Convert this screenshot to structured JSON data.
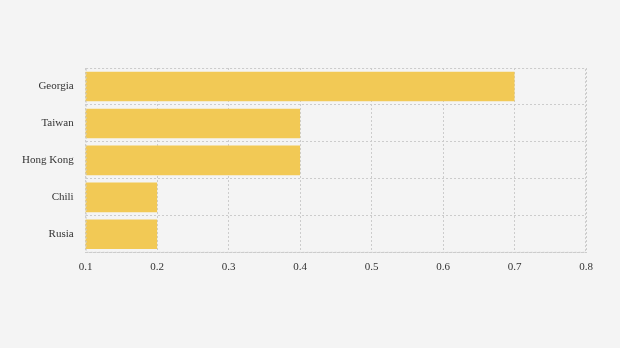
{
  "chart_data": {
    "type": "bar",
    "orientation": "horizontal",
    "categories": [
      "Georgia",
      "Taiwan",
      "Hong Kong",
      "Chili",
      "Rusia"
    ],
    "values": [
      0.7,
      0.4,
      0.4,
      0.2,
      0.2
    ],
    "color": "#f2c955",
    "xlim": [
      0.1,
      0.8
    ],
    "xticks": [
      0.1,
      0.2,
      0.3,
      0.4,
      0.5,
      0.6,
      0.7,
      0.8
    ],
    "grid": true
  }
}
